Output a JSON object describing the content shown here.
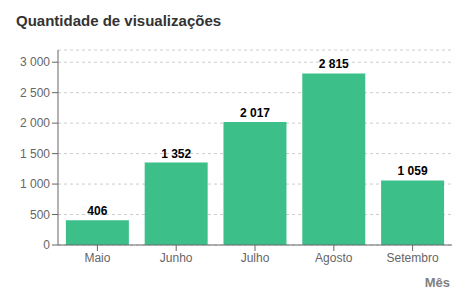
{
  "chart_data": {
    "type": "bar",
    "title": "Quantidade de visualizações",
    "x_label": "Mês",
    "categories": [
      "Maio",
      "Junho",
      "Julho",
      "Agosto",
      "Setembro"
    ],
    "values": [
      406,
      1352,
      2017,
      2815,
      1059
    ],
    "value_labels": [
      "406",
      "1 352",
      "2 017",
      "2 815",
      "1 059"
    ],
    "data_labels": true,
    "color": "#3dbf8a",
    "ylim": [
      0,
      3200
    ],
    "yticks": [
      0,
      500,
      {
        "value": 1000,
        "label": "1 000"
      },
      {
        "value": 1500,
        "label": "1 500"
      },
      {
        "value": 2000,
        "label": "2 000"
      },
      {
        "value": 2500,
        "label": "2 500"
      },
      {
        "value": 3000,
        "label": "3 000"
      }
    ],
    "grid": true
  }
}
